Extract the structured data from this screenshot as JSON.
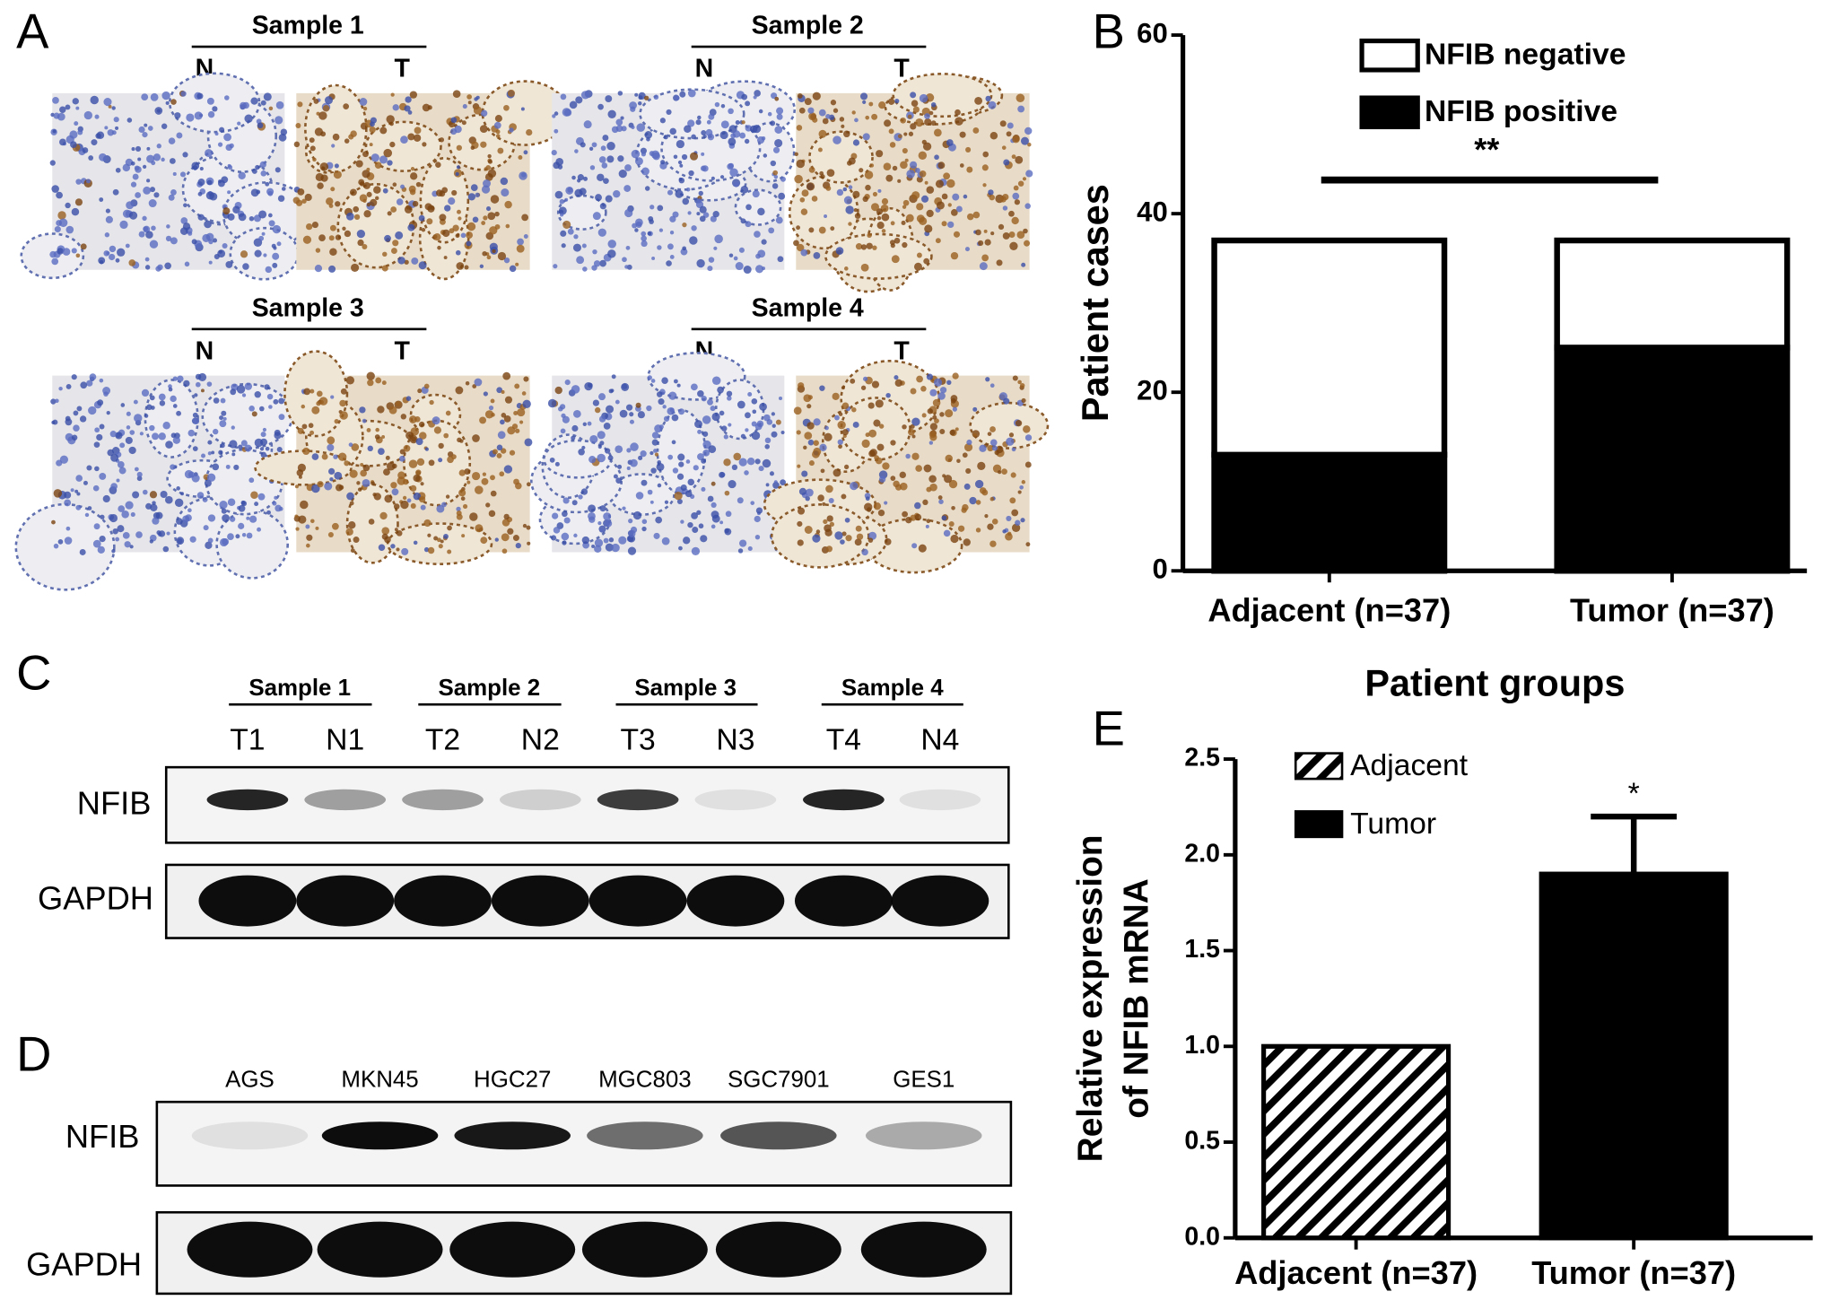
{
  "panels": {
    "A": {
      "label": "A",
      "samples": [
        {
          "title": "Sample 1",
          "normal": "N",
          "tumor": "T"
        },
        {
          "title": "Sample 2",
          "normal": "N",
          "tumor": "T"
        },
        {
          "title": "Sample 3",
          "normal": "N",
          "tumor": "T"
        },
        {
          "title": "Sample 4",
          "normal": "N",
          "tumor": "T"
        }
      ]
    },
    "C": {
      "label": "C",
      "samples": [
        "Sample 1",
        "Sample 2",
        "Sample 3",
        "Sample 4"
      ],
      "lanes": [
        "T1",
        "N1",
        "T2",
        "N2",
        "T3",
        "N3",
        "T4",
        "N4"
      ],
      "rows": [
        "NFIB",
        "GAPDH"
      ]
    },
    "D": {
      "label": "D",
      "lanes": [
        "AGS",
        "MKN45",
        "HGC27",
        "MGC803",
        "SGC7901",
        "GES1"
      ],
      "rows": [
        "NFIB",
        "GAPDH"
      ]
    }
  },
  "chart_data": [
    {
      "type": "stacked_bar",
      "panel_label": "B",
      "ylabel": "Patient cases",
      "xlabel": "Patient groups",
      "categories": [
        "Adjacent (n=37)",
        "Tumor (n=37)"
      ],
      "series": [
        {
          "name": "NFIB negative",
          "color": "#ffffff",
          "values": [
            24,
            12
          ]
        },
        {
          "name": "NFIB positive",
          "color": "#000000",
          "values": [
            13,
            25
          ]
        }
      ],
      "ylim": [
        0,
        60
      ],
      "yticks": [
        0,
        20,
        40,
        60
      ],
      "annotation": "**"
    },
    {
      "type": "bar",
      "panel_label": "E",
      "ylabel": [
        "Relative expression",
        "of NFIB mRNA"
      ],
      "categories": [
        "Adjacent (n=37)",
        "Tumor (n=37)"
      ],
      "series": [
        {
          "name": "Adjacent",
          "color": "#000000",
          "pattern": "hatch",
          "values": [
            1.0,
            null
          ]
        },
        {
          "name": "Tumor",
          "color": "#000000",
          "values": [
            null,
            1.9
          ],
          "errors": [
            null,
            0.3
          ]
        }
      ],
      "ylim": [
        0,
        2.5
      ],
      "yticks": [
        {
          "value": 0,
          "label": "0.0"
        },
        0.5,
        {
          "value": 1,
          "label": "1.0"
        },
        1.5,
        {
          "value": 2,
          "label": "2.0"
        },
        2.5
      ],
      "annotation": "*"
    }
  ]
}
